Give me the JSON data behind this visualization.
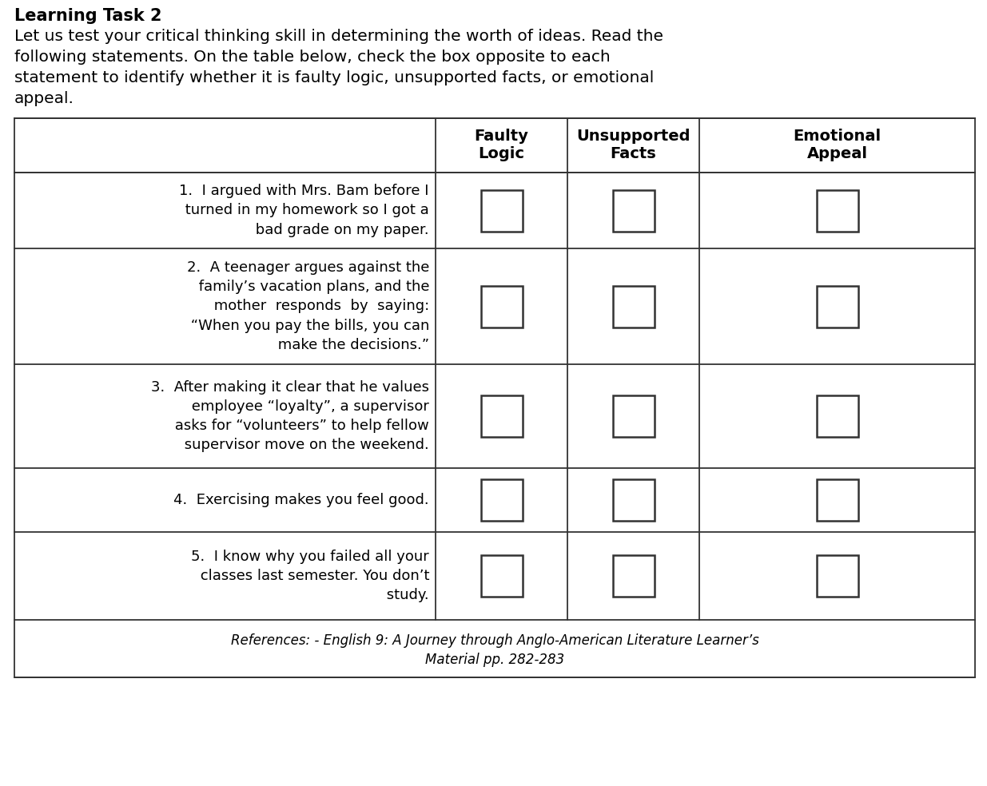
{
  "title": "Learning Task 2",
  "intro_lines": [
    "Let us test your critical thinking skill in determining the worth of ideas. Read the",
    "following statements. On the table below, check the box opposite to each",
    "statement to identify whether it is faulty logic, unsupported facts, or emotional",
    "appeal."
  ],
  "col_headers": [
    "Faulty\nLogic",
    "Unsupported\nFacts",
    "Emotional\nAppeal"
  ],
  "statements": [
    "1.  I argued with Mrs. Bam before I\n     turned in my homework so I got a\n     bad grade on my paper.",
    "2.  A teenager argues against the\n     family’s vacation plans, and the\n     mother  responds  by  saying:\n     “When you pay the bills, you can\n     make the decisions.”",
    "3.  After making it clear that he values\n     employee “loyalty”, a supervisor\n     asks for “volunteers” to help fellow\n     supervisor move on the weekend.",
    "4.  Exercising makes you feel good.",
    "5.  I know why you failed all your\n     classes last semester. You don’t\n     study."
  ],
  "reference_line1": "References: - English 9: A Journey through Anglo-American Literature Learner’s",
  "reference_line2": "Material pp. 282-283",
  "bg_color": "#ffffff",
  "border_color": "#333333",
  "text_color": "#000000",
  "box_color": "#333333",
  "font_size_title": 15,
  "font_size_intro": 14.5,
  "font_size_header": 14,
  "font_size_stmt": 13,
  "font_size_ref": 12
}
